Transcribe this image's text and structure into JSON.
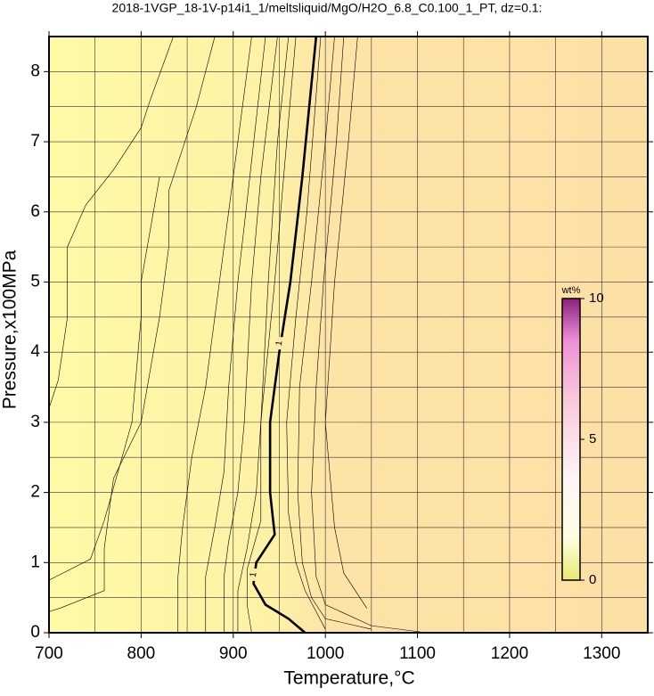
{
  "chart_data": {
    "type": "contour",
    "title": "2018-1VGP_18-1V-p14i1_1/meltsliquid/MgO/H2O_6.8_C0.100_1_PT, dz=0.1:",
    "x_label": "Temperature,°C",
    "y_label": "Pressure,x100MPa",
    "xlim": [
      700,
      1350
    ],
    "ylim": [
      0,
      8.5
    ],
    "xticks": [
      700,
      800,
      900,
      1000,
      1100,
      1200,
      1300
    ],
    "yticks": [
      0,
      1,
      2,
      3,
      4,
      5,
      6,
      7,
      8
    ],
    "xgrid": [
      750,
      800,
      850,
      900,
      950,
      1000,
      1050,
      1100,
      1150,
      1200,
      1250,
      1300
    ],
    "ygrid": [
      0.5,
      1,
      1.5,
      2,
      2.5,
      3,
      3.5,
      4,
      4.5,
      5,
      5.5,
      6,
      6.5,
      7,
      7.5,
      8
    ],
    "grid": true,
    "contours": [
      {
        "x": [
          700,
          712,
          760,
          760,
          770,
          800,
          820,
          830,
          830,
          860,
          880
        ],
        "y": [
          0.3,
          0.35,
          0.6,
          1.2,
          2.2,
          3.0,
          4.5,
          5.5,
          6.3,
          7.5,
          8.5
        ]
      },
      {
        "x": [
          700,
          710,
          720,
          720,
          740,
          770,
          800,
          810,
          835
        ],
        "y": [
          3.2,
          3.6,
          4.5,
          5.5,
          6.1,
          6.6,
          7.2,
          7.6,
          8.5
        ]
      },
      {
        "x": [
          700,
          745,
          760,
          790,
          800,
          800,
          820
        ],
        "y": [
          0.75,
          1.05,
          1.6,
          3.0,
          4.5,
          5.0,
          6.5
        ]
      },
      {
        "x": [
          840,
          840,
          845,
          855,
          870,
          880,
          890,
          905,
          920
        ],
        "y": [
          0,
          0.8,
          1.5,
          2.5,
          3.5,
          4.5,
          5.5,
          7.0,
          8.5
        ]
      },
      {
        "x": [
          870,
          870,
          880,
          890,
          895,
          905,
          918,
          935
        ],
        "y": [
          0,
          0.8,
          1.5,
          2.3,
          3.5,
          5,
          6.5,
          8.5
        ]
      },
      {
        "x": [
          890,
          890,
          895,
          905,
          912,
          920,
          930,
          948
        ],
        "y": [
          0,
          0.8,
          1.3,
          2.0,
          3,
          5,
          6.5,
          8.5
        ]
      },
      {
        "x": [
          905,
          905,
          915,
          925,
          930,
          938,
          948,
          960
        ],
        "y": [
          0,
          0.6,
          1.2,
          2,
          3,
          5,
          7,
          8.5
        ]
      },
      {
        "x": [
          920,
          915,
          915,
          930,
          930,
          945,
          958,
          968
        ],
        "y": [
          0,
          0.4,
          0.9,
          1.6,
          3,
          5,
          7,
          8.5
        ]
      },
      {
        "x": [
          978,
          960,
          935,
          922,
          925,
          945,
          940,
          940,
          950,
          962,
          975,
          990
        ],
        "y": [
          0,
          0.2,
          0.4,
          0.7,
          1.0,
          1.4,
          2.0,
          3.0,
          4.0,
          5.0,
          6.5,
          8.5
        ],
        "label": "1"
      },
      {
        "x": [
          1000,
          990,
          978,
          968,
          960,
          958,
          968,
          980,
          995
        ],
        "y": [
          0.05,
          0.3,
          0.6,
          1.0,
          1.7,
          3,
          4.5,
          6,
          8.5
        ]
      },
      {
        "x": [
          1050,
          1000,
          985,
          975,
          970,
          972,
          985,
          1000,
          1010
        ],
        "y": [
          0.05,
          0.2,
          0.5,
          1,
          2,
          3.5,
          5,
          7,
          8.5
        ]
      },
      {
        "x": [
          1110,
          1050,
          1000,
          990,
          985,
          990,
          998,
          1012,
          1020
        ],
        "y": [
          0,
          0.1,
          0.4,
          0.8,
          2,
          3.5,
          5,
          7,
          8.5
        ]
      },
      {
        "x": [
          1045,
          1020,
          1010,
          1000,
          1010,
          1025,
          1035
        ],
        "y": [
          0.35,
          0.85,
          1.5,
          3,
          5,
          7,
          8.5
        ]
      }
    ],
    "colorbar": {
      "label": "wt%",
      "clim": [
        0,
        10
      ],
      "ticks": [
        0,
        5,
        10
      ]
    }
  }
}
